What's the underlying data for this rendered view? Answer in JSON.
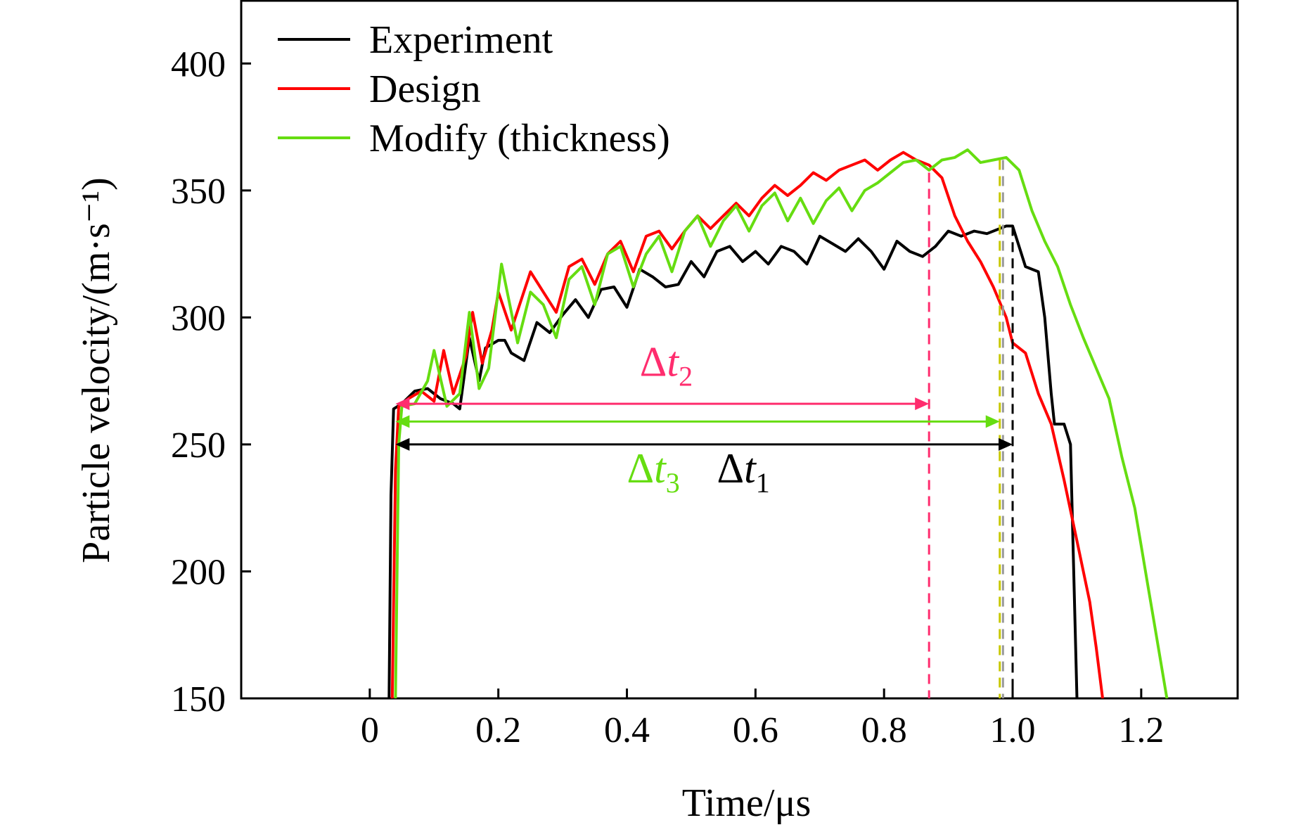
{
  "chart_data": {
    "type": "line",
    "xlabel": "Time/μs",
    "ylabel": "Particle velocity/(m·s⁻¹)",
    "xlim": [
      -0.2,
      1.35
    ],
    "ylim": [
      150,
      425
    ],
    "x_ticks": [
      0,
      0.2,
      0.4,
      0.6,
      0.8,
      1.0,
      1.2
    ],
    "x_tick_labels": [
      "0",
      "0.2",
      "0.4",
      "0.6",
      "0.8",
      "1.0",
      "1.2"
    ],
    "y_ticks": [
      150,
      200,
      250,
      300,
      350,
      400
    ],
    "y_tick_labels": [
      "150",
      "200",
      "250",
      "300",
      "350",
      "400"
    ],
    "grid": false,
    "legend_position": "top-left",
    "series": [
      {
        "name": "Experiment",
        "color": "#000000",
        "points": [
          [
            0.03,
            150
          ],
          [
            0.033,
            230
          ],
          [
            0.037,
            264
          ],
          [
            0.05,
            266
          ],
          [
            0.07,
            271
          ],
          [
            0.09,
            272
          ],
          [
            0.11,
            268
          ],
          [
            0.13,
            266
          ],
          [
            0.14,
            264
          ],
          [
            0.155,
            292
          ],
          [
            0.17,
            275
          ],
          [
            0.18,
            288
          ],
          [
            0.2,
            291
          ],
          [
            0.21,
            291
          ],
          [
            0.22,
            286
          ],
          [
            0.24,
            283
          ],
          [
            0.26,
            298
          ],
          [
            0.28,
            294
          ],
          [
            0.3,
            301
          ],
          [
            0.32,
            307
          ],
          [
            0.34,
            300
          ],
          [
            0.36,
            311
          ],
          [
            0.38,
            312
          ],
          [
            0.4,
            304
          ],
          [
            0.42,
            319
          ],
          [
            0.44,
            316
          ],
          [
            0.46,
            312
          ],
          [
            0.48,
            313
          ],
          [
            0.5,
            322
          ],
          [
            0.52,
            316
          ],
          [
            0.54,
            326
          ],
          [
            0.56,
            328
          ],
          [
            0.58,
            322
          ],
          [
            0.6,
            326
          ],
          [
            0.62,
            321
          ],
          [
            0.64,
            328
          ],
          [
            0.66,
            326
          ],
          [
            0.68,
            321
          ],
          [
            0.7,
            332
          ],
          [
            0.72,
            329
          ],
          [
            0.74,
            326
          ],
          [
            0.76,
            331
          ],
          [
            0.78,
            326
          ],
          [
            0.8,
            319
          ],
          [
            0.82,
            330
          ],
          [
            0.84,
            326
          ],
          [
            0.86,
            324
          ],
          [
            0.88,
            328
          ],
          [
            0.9,
            334
          ],
          [
            0.92,
            332
          ],
          [
            0.94,
            334
          ],
          [
            0.96,
            333
          ],
          [
            0.99,
            336
          ],
          [
            1.0,
            336
          ],
          [
            1.02,
            320
          ],
          [
            1.04,
            318
          ],
          [
            1.05,
            300
          ],
          [
            1.06,
            270
          ],
          [
            1.065,
            258
          ],
          [
            1.08,
            258
          ],
          [
            1.09,
            250
          ],
          [
            1.095,
            200
          ],
          [
            1.1,
            150
          ]
        ]
      },
      {
        "name": "Design",
        "color": "#ff0000",
        "points": [
          [
            0.035,
            150
          ],
          [
            0.04,
            240
          ],
          [
            0.045,
            265
          ],
          [
            0.06,
            268
          ],
          [
            0.08,
            271
          ],
          [
            0.1,
            267
          ],
          [
            0.115,
            287
          ],
          [
            0.13,
            270
          ],
          [
            0.15,
            285
          ],
          [
            0.16,
            302
          ],
          [
            0.175,
            282
          ],
          [
            0.19,
            295
          ],
          [
            0.2,
            310
          ],
          [
            0.22,
            295
          ],
          [
            0.25,
            318
          ],
          [
            0.27,
            310
          ],
          [
            0.29,
            302
          ],
          [
            0.31,
            320
          ],
          [
            0.33,
            323
          ],
          [
            0.35,
            313
          ],
          [
            0.37,
            325
          ],
          [
            0.39,
            330
          ],
          [
            0.41,
            318
          ],
          [
            0.43,
            332
          ],
          [
            0.45,
            334
          ],
          [
            0.47,
            327
          ],
          [
            0.49,
            334
          ],
          [
            0.51,
            340
          ],
          [
            0.53,
            335
          ],
          [
            0.55,
            340
          ],
          [
            0.57,
            345
          ],
          [
            0.59,
            340
          ],
          [
            0.61,
            347
          ],
          [
            0.63,
            352
          ],
          [
            0.65,
            348
          ],
          [
            0.67,
            352
          ],
          [
            0.69,
            357
          ],
          [
            0.71,
            354
          ],
          [
            0.73,
            358
          ],
          [
            0.75,
            360
          ],
          [
            0.77,
            362
          ],
          [
            0.79,
            358
          ],
          [
            0.81,
            362
          ],
          [
            0.83,
            365
          ],
          [
            0.85,
            362
          ],
          [
            0.87,
            360
          ],
          [
            0.89,
            355
          ],
          [
            0.91,
            340
          ],
          [
            0.93,
            330
          ],
          [
            0.95,
            322
          ],
          [
            0.97,
            312
          ],
          [
            0.99,
            300
          ],
          [
            1.0,
            290
          ],
          [
            1.02,
            286
          ],
          [
            1.04,
            270
          ],
          [
            1.06,
            258
          ],
          [
            1.08,
            236
          ],
          [
            1.1,
            212
          ],
          [
            1.11,
            200
          ],
          [
            1.12,
            188
          ],
          [
            1.13,
            170
          ],
          [
            1.14,
            150
          ]
        ]
      },
      {
        "name": "Modify (thickness)",
        "color": "#66dd11",
        "points": [
          [
            0.04,
            150
          ],
          [
            0.045,
            250
          ],
          [
            0.05,
            265
          ],
          [
            0.07,
            266
          ],
          [
            0.09,
            275
          ],
          [
            0.1,
            287
          ],
          [
            0.12,
            265
          ],
          [
            0.14,
            270
          ],
          [
            0.155,
            302
          ],
          [
            0.17,
            272
          ],
          [
            0.185,
            280
          ],
          [
            0.205,
            321
          ],
          [
            0.23,
            290
          ],
          [
            0.25,
            310
          ],
          [
            0.27,
            305
          ],
          [
            0.29,
            292
          ],
          [
            0.31,
            315
          ],
          [
            0.33,
            320
          ],
          [
            0.35,
            305
          ],
          [
            0.37,
            325
          ],
          [
            0.39,
            328
          ],
          [
            0.41,
            312
          ],
          [
            0.43,
            325
          ],
          [
            0.45,
            332
          ],
          [
            0.47,
            318
          ],
          [
            0.49,
            334
          ],
          [
            0.51,
            340
          ],
          [
            0.53,
            328
          ],
          [
            0.55,
            338
          ],
          [
            0.57,
            344
          ],
          [
            0.59,
            334
          ],
          [
            0.61,
            344
          ],
          [
            0.63,
            349
          ],
          [
            0.65,
            338
          ],
          [
            0.67,
            347
          ],
          [
            0.69,
            337
          ],
          [
            0.71,
            346
          ],
          [
            0.73,
            351
          ],
          [
            0.75,
            342
          ],
          [
            0.77,
            350
          ],
          [
            0.79,
            353
          ],
          [
            0.81,
            357
          ],
          [
            0.83,
            361
          ],
          [
            0.85,
            362
          ],
          [
            0.87,
            358
          ],
          [
            0.89,
            362
          ],
          [
            0.91,
            363
          ],
          [
            0.93,
            366
          ],
          [
            0.95,
            361
          ],
          [
            0.97,
            362
          ],
          [
            0.99,
            363
          ],
          [
            1.01,
            358
          ],
          [
            1.03,
            342
          ],
          [
            1.05,
            330
          ],
          [
            1.07,
            320
          ],
          [
            1.09,
            305
          ],
          [
            1.11,
            292
          ],
          [
            1.13,
            280
          ],
          [
            1.15,
            268
          ],
          [
            1.17,
            245
          ],
          [
            1.19,
            225
          ],
          [
            1.2,
            210
          ],
          [
            1.21,
            195
          ],
          [
            1.22,
            180
          ],
          [
            1.23,
            165
          ],
          [
            1.24,
            150
          ]
        ]
      }
    ],
    "reference_lines": [
      {
        "x": 0.87,
        "color": "#ff2d6e"
      },
      {
        "x": 0.98,
        "color": "#c8c800"
      },
      {
        "x": 0.985,
        "color": "#999999"
      },
      {
        "x": 1.0,
        "color": "#000000"
      }
    ],
    "arrows": [
      {
        "x0": 0.04,
        "x1": 0.87,
        "y": 266,
        "color": "#ff2d6e"
      },
      {
        "x0": 0.04,
        "x1": 0.98,
        "y": 259,
        "color": "#66dd11"
      },
      {
        "x0": 0.04,
        "x1": 1.0,
        "y": 250,
        "color": "#000000"
      }
    ],
    "annotations": [
      {
        "text": "Δ",
        "italic": "t",
        "sub": "2",
        "x": 0.42,
        "y": 277,
        "color": "#ff2d6e"
      },
      {
        "text": "Δ",
        "italic": "t",
        "sub": "3",
        "x": 0.4,
        "y": 235,
        "color": "#66dd11"
      },
      {
        "text": "Δ",
        "italic": "t",
        "sub": "1",
        "x": 0.54,
        "y": 235,
        "color": "#000000"
      }
    ]
  }
}
